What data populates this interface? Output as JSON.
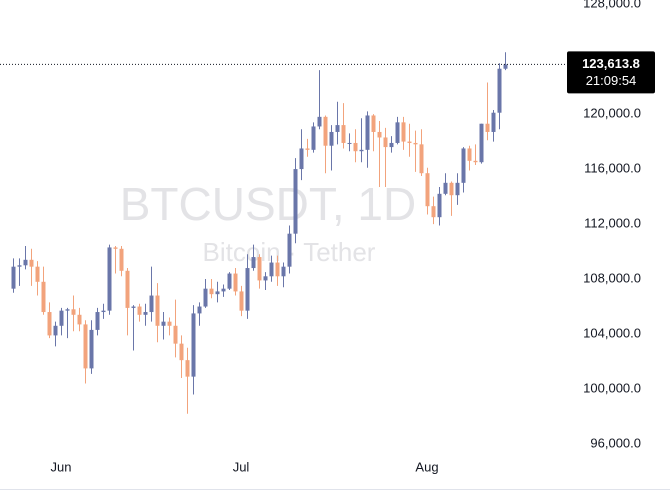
{
  "chart_data": {
    "type": "candlestick",
    "title": "BTCUSDT, 1D",
    "subtitle": "Bitcoin · Tether",
    "categories": [
      null,
      null,
      null,
      null,
      null,
      null,
      null,
      null,
      "Jun",
      null,
      null,
      null,
      null,
      null,
      null,
      null,
      null,
      null,
      null,
      null,
      null,
      null,
      null,
      null,
      null,
      null,
      null,
      null,
      null,
      null,
      null,
      null,
      null,
      null,
      null,
      null,
      null,
      null,
      "Jul",
      null,
      null,
      null,
      null,
      null,
      null,
      null,
      null,
      null,
      null,
      null,
      null,
      null,
      null,
      null,
      null,
      null,
      null,
      null,
      null,
      null,
      null,
      null,
      null,
      null,
      null,
      null,
      null,
      null,
      null,
      "Aug",
      null,
      null,
      null,
      null,
      null,
      null,
      null,
      null,
      null,
      null,
      null,
      null,
      null
    ],
    "open": [
      107300,
      108900,
      109000,
      109400,
      108900,
      107800,
      105600,
      103900,
      104600,
      105700,
      105800,
      105400,
      104700,
      101500,
      104300,
      105600,
      105700,
      110300,
      110200,
      108600,
      105900,
      106000,
      105400,
      105600,
      106800,
      104600,
      104900,
      104600,
      103300,
      102100,
      100900,
      105500,
      106000,
      107300,
      106900,
      107100,
      107300,
      108400,
      107100,
      105700,
      108800,
      109600,
      107900,
      108200,
      109200,
      108200,
      108900,
      111300,
      116000,
      117500,
      117400,
      119100,
      119800,
      117700,
      118700,
      119200,
      117900,
      117900,
      117300,
      117400,
      119900,
      118700,
      118300,
      117600,
      117900,
      119400,
      118000,
      117900,
      117800,
      115700,
      113300,
      112500,
      114200,
      115000,
      114100,
      115000,
      117500,
      116600,
      116500,
      119300,
      118700,
      120100,
      123300
    ],
    "high": [
      109500,
      109500,
      110400,
      110200,
      109300,
      108900,
      106300,
      104900,
      105900,
      105900,
      106800,
      105900,
      105000,
      105000,
      105900,
      106200,
      110500,
      110400,
      110400,
      108800,
      106100,
      106200,
      106200,
      108900,
      107700,
      105600,
      105200,
      106500,
      103900,
      103000,
      106100,
      106300,
      108000,
      108000,
      107800,
      107600,
      108500,
      108800,
      107500,
      109800,
      110500,
      109800,
      108500,
      109700,
      109700,
      109200,
      111900,
      116800,
      118900,
      118200,
      119400,
      123200,
      119900,
      119200,
      120900,
      120800,
      118600,
      118900,
      119700,
      120200,
      120000,
      119500,
      119000,
      118400,
      119800,
      119800,
      119300,
      118800,
      118900,
      116100,
      114000,
      114700,
      115700,
      115100,
      115700,
      117600,
      117700,
      117800,
      119300,
      122300,
      120300,
      123700,
      124500
    ],
    "low": [
      107000,
      107500,
      108700,
      107500,
      106800,
      105400,
      103700,
      103100,
      103900,
      103700,
      104200,
      104200,
      100400,
      101100,
      103900,
      105100,
      105400,
      108400,
      108200,
      103900,
      102800,
      104900,
      104600,
      104900,
      103400,
      103600,
      103900,
      102300,
      100800,
      98200,
      99600,
      104600,
      105900,
      106600,
      106300,
      106700,
      107200,
      106800,
      105300,
      105100,
      108600,
      107300,
      107200,
      107800,
      107500,
      107400,
      108400,
      110600,
      115200,
      116900,
      117200,
      118900,
      115700,
      115900,
      117800,
      117500,
      117300,
      116500,
      116500,
      116100,
      117300,
      114700,
      114700,
      117200,
      117800,
      117400,
      116900,
      115800,
      115500,
      112700,
      112000,
      111900,
      114100,
      112600,
      113400,
      114300,
      115900,
      116300,
      116400,
      118100,
      118000,
      118900,
      123200
    ],
    "close": [
      108900,
      109000,
      109400,
      108900,
      107800,
      105600,
      103900,
      104600,
      105700,
      105800,
      105400,
      104700,
      101500,
      104300,
      105600,
      105700,
      110300,
      110200,
      108600,
      105900,
      106000,
      105400,
      105600,
      106800,
      104600,
      104900,
      104600,
      103300,
      102100,
      100900,
      105500,
      106000,
      107300,
      106900,
      107100,
      107300,
      108400,
      107100,
      105700,
      108800,
      109600,
      107900,
      108200,
      109200,
      108200,
      108900,
      111300,
      116000,
      117500,
      117400,
      119100,
      119800,
      117700,
      118700,
      119200,
      117900,
      117900,
      117300,
      117400,
      119900,
      118700,
      118300,
      117600,
      117900,
      119400,
      118000,
      117900,
      117800,
      115700,
      113300,
      112500,
      114200,
      115000,
      114100,
      115000,
      117500,
      116600,
      116500,
      119300,
      118700,
      120100,
      123300,
      123613.8
    ],
    "up_color": "#6a76a9",
    "down_color": "#f2a37c",
    "ylim": [
      95200,
      128300
    ],
    "yticks": [
      {
        "value": 96000,
        "label": "96,000.0"
      },
      {
        "value": 100000,
        "label": "100,000.0"
      },
      {
        "value": 104000,
        "label": "104,000.0"
      },
      {
        "value": 108000,
        "label": "108,000.0"
      },
      {
        "value": 112000,
        "label": "112,000.0"
      },
      {
        "value": 116000,
        "label": "116,000.0"
      },
      {
        "value": 120000,
        "label": "120,000.0"
      },
      {
        "value": 128000,
        "label": "128,000.0"
      }
    ],
    "last_price": {
      "value": 123613.8,
      "label": "123,613.8"
    },
    "countdown": "21:09:54"
  }
}
